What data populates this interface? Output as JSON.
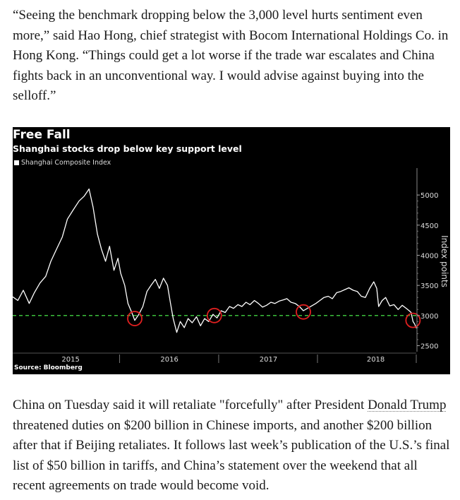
{
  "article": {
    "paragraph_1": "“Seeing the benchmark dropping below the 3,000 level hurts sentiment even more,” said Hao Hong, chief strategist with Bocom International Holdings Co. in Hong Kong. “Things could get a lot worse if the trade war escalates and China fights back in an unconventional way. I would advise against buying into the selloff.”",
    "paragraph_2_before": "China on Tuesday said it will retaliate \"forcefully\" after President ",
    "paragraph_2_link": "Donald Trump",
    "paragraph_2_after": " threatened duties on $200 billion in Chinese imports, and another $200 billion after that if Beijing retaliates. It follows last week’s publication of the U.S.’s final list of $50 billion in tariffs, and China’s statement over the weekend that all recent agreements on trade would become void."
  },
  "chart_data": {
    "type": "line",
    "title": "Free Fall",
    "subtitle": "Shanghai stocks drop below key support level",
    "legend": [
      "Shanghai Composite Index"
    ],
    "legend_position": "top-left",
    "ylabel": "Index points",
    "source": "Source: Bloomberg",
    "y_ticks": [
      2500,
      3000,
      3500,
      4000,
      4500,
      5000
    ],
    "ylim": [
      2400,
      5400
    ],
    "x_tick_labels": [
      "2015",
      "2016",
      "2017",
      "2018"
    ],
    "x_tick_dates": [
      "2015-01-01",
      "2016-01-01",
      "2017-01-01",
      "2018-01-01"
    ],
    "xlim": [
      "2014-06-01",
      "2018-07-01"
    ],
    "reference_line": {
      "value": 3000,
      "color": "#3bbf3b",
      "style": "dashed"
    },
    "highlight_circles": [
      {
        "date": "2015-08-26",
        "value": 2950
      },
      {
        "date": "2016-06-15",
        "value": 3000
      },
      {
        "date": "2017-05-10",
        "value": 3060
      },
      {
        "date": "2018-06-19",
        "value": 2920
      }
    ],
    "series": [
      {
        "name": "Shanghai Composite Index",
        "color": "#ffffff",
        "points": [
          [
            "2014-06-01",
            3310
          ],
          [
            "2014-06-20",
            3250
          ],
          [
            "2014-07-10",
            3420
          ],
          [
            "2014-08-01",
            3200
          ],
          [
            "2014-08-20",
            3380
          ],
          [
            "2014-09-10",
            3540
          ],
          [
            "2014-10-01",
            3650
          ],
          [
            "2014-10-20",
            3900
          ],
          [
            "2014-11-10",
            4100
          ],
          [
            "2014-12-01",
            4300
          ],
          [
            "2014-12-20",
            4600
          ],
          [
            "2015-01-10",
            4750
          ],
          [
            "2015-02-01",
            4900
          ],
          [
            "2015-02-20",
            4980
          ],
          [
            "2015-03-10",
            5100
          ],
          [
            "2015-03-25",
            4800
          ],
          [
            "2015-04-10",
            4350
          ],
          [
            "2015-04-25",
            4100
          ],
          [
            "2015-05-10",
            3900
          ],
          [
            "2015-05-25",
            4150
          ],
          [
            "2015-06-10",
            3750
          ],
          [
            "2015-06-25",
            3950
          ],
          [
            "2015-07-05",
            3700
          ],
          [
            "2015-07-20",
            3500
          ],
          [
            "2015-08-01",
            3200
          ],
          [
            "2015-08-15",
            3050
          ],
          [
            "2015-08-26",
            2920
          ],
          [
            "2015-09-10",
            3020
          ],
          [
            "2015-09-25",
            3150
          ],
          [
            "2015-10-10",
            3400
          ],
          [
            "2015-10-25",
            3500
          ],
          [
            "2015-11-10",
            3600
          ],
          [
            "2015-11-25",
            3450
          ],
          [
            "2015-12-10",
            3620
          ],
          [
            "2015-12-25",
            3500
          ],
          [
            "2016-01-05",
            3200
          ],
          [
            "2016-01-15",
            2950
          ],
          [
            "2016-01-28",
            2720
          ],
          [
            "2016-02-10",
            2900
          ],
          [
            "2016-02-25",
            2800
          ],
          [
            "2016-03-10",
            2950
          ],
          [
            "2016-03-25",
            2880
          ],
          [
            "2016-04-10",
            2980
          ],
          [
            "2016-04-25",
            2830
          ],
          [
            "2016-05-10",
            2950
          ],
          [
            "2016-05-25",
            2900
          ],
          [
            "2016-06-10",
            3020
          ],
          [
            "2016-06-25",
            2960
          ],
          [
            "2016-07-10",
            3080
          ],
          [
            "2016-07-25",
            3050
          ],
          [
            "2016-08-10",
            3150
          ],
          [
            "2016-08-25",
            3120
          ],
          [
            "2016-09-10",
            3180
          ],
          [
            "2016-09-25",
            3150
          ],
          [
            "2016-10-10",
            3220
          ],
          [
            "2016-10-25",
            3180
          ],
          [
            "2016-11-10",
            3250
          ],
          [
            "2016-11-25",
            3200
          ],
          [
            "2016-12-10",
            3140
          ],
          [
            "2016-12-25",
            3170
          ],
          [
            "2017-01-10",
            3220
          ],
          [
            "2017-01-25",
            3200
          ],
          [
            "2017-02-10",
            3240
          ],
          [
            "2017-02-25",
            3260
          ],
          [
            "2017-03-10",
            3280
          ],
          [
            "2017-03-25",
            3220
          ],
          [
            "2017-04-10",
            3200
          ],
          [
            "2017-04-25",
            3150
          ],
          [
            "2017-05-10",
            3080
          ],
          [
            "2017-05-25",
            3120
          ],
          [
            "2017-06-10",
            3160
          ],
          [
            "2017-06-25",
            3200
          ],
          [
            "2017-07-10",
            3250
          ],
          [
            "2017-07-25",
            3300
          ],
          [
            "2017-08-10",
            3320
          ],
          [
            "2017-08-25",
            3280
          ],
          [
            "2017-09-10",
            3380
          ],
          [
            "2017-09-25",
            3400
          ],
          [
            "2017-10-10",
            3430
          ],
          [
            "2017-10-25",
            3460
          ],
          [
            "2017-11-10",
            3420
          ],
          [
            "2017-11-25",
            3400
          ],
          [
            "2017-12-10",
            3320
          ],
          [
            "2017-12-25",
            3300
          ],
          [
            "2018-01-10",
            3450
          ],
          [
            "2018-01-25",
            3560
          ],
          [
            "2018-02-05",
            3450
          ],
          [
            "2018-02-12",
            3150
          ],
          [
            "2018-02-25",
            3250
          ],
          [
            "2018-03-10",
            3300
          ],
          [
            "2018-03-25",
            3160
          ],
          [
            "2018-04-10",
            3180
          ],
          [
            "2018-04-25",
            3100
          ],
          [
            "2018-05-10",
            3170
          ],
          [
            "2018-05-25",
            3120
          ],
          [
            "2018-06-05",
            3080
          ],
          [
            "2018-06-12",
            3050
          ],
          [
            "2018-06-19",
            2900
          ],
          [
            "2018-06-25",
            2860
          ],
          [
            "2018-07-01",
            2790
          ]
        ]
      }
    ]
  }
}
